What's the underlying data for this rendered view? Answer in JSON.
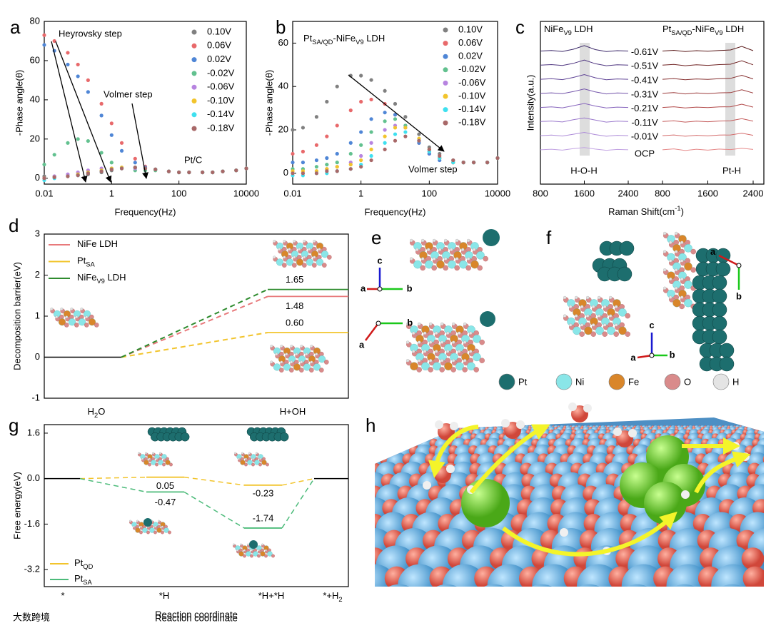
{
  "panel_labels": [
    "a",
    "b",
    "c",
    "d",
    "e",
    "f",
    "g",
    "h"
  ],
  "chart_data": [
    {
      "type": "scatter",
      "xscale": "log",
      "xlabel": "Frequency(Hz)",
      "ylabel": "-Phase angle(θ)",
      "x": [
        0.01,
        0.02,
        0.05,
        0.1,
        0.2,
        0.5,
        1,
        2,
        5,
        10,
        20,
        50,
        100,
        200,
        500,
        1000,
        2000,
        5000,
        10000
      ],
      "xlim": [
        0.01,
        10000
      ],
      "xticks": [
        0.01,
        1,
        100,
        10000
      ],
      "ylim": [
        -3,
        80
      ],
      "yticks": [
        0,
        20,
        40,
        60,
        80
      ],
      "series": [
        {
          "name": "0.10V",
          "color": "#808080",
          "values": [
            1,
            1,
            1,
            1.5,
            2,
            3,
            4,
            5,
            5.5,
            5,
            4.5,
            3.5,
            3,
            3,
            3,
            3,
            3.5,
            4,
            5
          ]
        },
        {
          "name": "0.06V",
          "color": "#e8696b",
          "values": [
            73,
            70,
            64,
            58,
            50,
            38,
            28,
            18,
            10,
            6,
            4.5,
            3.5,
            3,
            3,
            3,
            3,
            3.5,
            4,
            5
          ]
        },
        {
          "name": "0.02V",
          "color": "#4f86d6",
          "values": [
            68,
            65,
            58,
            52,
            44,
            32,
            22,
            14,
            8,
            5.5,
            4.5,
            3.5,
            3,
            3,
            3,
            3,
            3.5,
            4,
            5
          ]
        },
        {
          "name": "-0.02V",
          "color": "#62c18f",
          "values": [
            7,
            12,
            18,
            20,
            19,
            13,
            8,
            5,
            4,
            4,
            4,
            3.5,
            3,
            3,
            3,
            3,
            3.5,
            4,
            5
          ]
        },
        {
          "name": "-0.06V",
          "color": "#b784e0",
          "values": [
            0,
            1,
            2,
            3,
            4,
            5,
            5,
            5,
            5,
            5,
            4.5,
            3.5,
            3,
            3,
            3,
            3,
            3.5,
            4,
            5
          ]
        },
        {
          "name": "-0.10V",
          "color": "#f2c42c",
          "values": [
            0,
            0.5,
            1,
            2,
            3,
            4,
            5,
            5.5,
            5.5,
            5,
            4.5,
            3.5,
            3,
            3,
            3,
            3,
            3.5,
            4,
            5
          ]
        },
        {
          "name": "-0.14V",
          "color": "#3fe0ef",
          "values": [
            -1,
            0,
            1,
            1.5,
            2.5,
            3.5,
            4.5,
            5,
            5.5,
            5,
            4.5,
            3.5,
            3,
            3,
            3,
            3,
            3.5,
            4,
            5
          ]
        },
        {
          "name": "-0.18V",
          "color": "#a86868",
          "values": [
            0,
            0.5,
            1,
            1.5,
            2.5,
            3.5,
            4.5,
            5,
            5.5,
            5,
            4.5,
            3.5,
            3,
            3,
            3,
            3,
            3.5,
            4,
            5
          ]
        }
      ],
      "annotations": [
        {
          "text": "Heyrovsky step"
        },
        {
          "text": "Volmer step"
        },
        {
          "text": "Pt/C",
          "color": "#f2c42c"
        }
      ]
    },
    {
      "type": "scatter",
      "xscale": "log",
      "xlabel": "Frequency(Hz)",
      "ylabel": "-Phase angle(θ)",
      "x": [
        0.01,
        0.02,
        0.05,
        0.1,
        0.2,
        0.5,
        1,
        2,
        5,
        10,
        20,
        50,
        100,
        200,
        500,
        1000,
        2000,
        5000,
        10000
      ],
      "xlim": [
        0.01,
        10000
      ],
      "xticks": [
        0.01,
        1,
        100,
        10000
      ],
      "ylim": [
        -5,
        70
      ],
      "yticks": [
        0,
        20,
        40,
        60
      ],
      "series": [
        {
          "name": "0.10V",
          "color": "#808080",
          "values": [
            20,
            21,
            26,
            33,
            40,
            45,
            45,
            43,
            38,
            32,
            26,
            18,
            12,
            9,
            6,
            5,
            5,
            5,
            7
          ]
        },
        {
          "name": "0.06V",
          "color": "#e8696b",
          "values": [
            9,
            10,
            13,
            17,
            22,
            29,
            33,
            34,
            32,
            27,
            21,
            14,
            9,
            7,
            5,
            5,
            5,
            5,
            7
          ]
        },
        {
          "name": "0.02V",
          "color": "#4f86d6",
          "values": [
            5,
            5,
            6,
            7,
            9,
            14,
            19,
            25,
            28,
            27,
            22,
            14,
            9,
            6,
            5,
            5,
            5,
            5,
            7
          ]
        },
        {
          "name": "-0.02V",
          "color": "#62c18f",
          "values": [
            2,
            2,
            3,
            4,
            5,
            9,
            13,
            19,
            24,
            25,
            22,
            15,
            10,
            7,
            5,
            5,
            5,
            5,
            7
          ]
        },
        {
          "name": "-0.06V",
          "color": "#b784e0",
          "values": [
            0,
            0,
            1,
            2,
            3,
            5,
            8,
            14,
            20,
            22,
            21,
            15,
            10,
            7,
            5,
            5,
            5,
            5,
            7
          ]
        },
        {
          "name": "-0.10V",
          "color": "#f2c42c",
          "values": [
            1,
            1,
            1,
            2,
            3,
            4,
            6,
            11,
            17,
            21,
            21,
            16,
            11,
            7,
            5,
            5,
            5,
            5,
            7
          ]
        },
        {
          "name": "-0.14V",
          "color": "#3fe0ef",
          "values": [
            -1,
            -1,
            0,
            0,
            1,
            2,
            4,
            8,
            14,
            18,
            19,
            15,
            10,
            7,
            5,
            5,
            5,
            5,
            7
          ]
        },
        {
          "name": "-0.18V",
          "color": "#a86868",
          "values": [
            0,
            0,
            0,
            1,
            1,
            2,
            3,
            6,
            11,
            15,
            17,
            15,
            11,
            8,
            6,
            5,
            5,
            5,
            7
          ]
        }
      ],
      "annotations": [
        {
          "parts": [
            {
              "text": "Pt"
            },
            {
              "text": "SA/QD",
              "sub": true
            },
            {
              "text": "-NiFe"
            },
            {
              "text": "V9",
              "sub": true
            },
            {
              "text": " LDH"
            }
          ],
          "color": "#e8696b"
        },
        {
          "text": "Volmer step"
        }
      ]
    },
    {
      "type": "spectra",
      "ylabel": "Intensity(a.u.)",
      "xlabel": [
        {
          "text": "Raman Shift(cm"
        },
        {
          "text": "-1",
          "sup": true
        },
        {
          "text": ")"
        }
      ],
      "x": [
        800,
        1000,
        1200,
        1400,
        1600,
        1800,
        2000,
        2200,
        2400
      ],
      "xlim": [
        800,
        2400
      ],
      "xticks": [
        800,
        1600,
        2400
      ],
      "ylim": [
        0,
        9
      ],
      "labels": [
        "-0.61V",
        "-0.51V",
        "-0.41V",
        "-0.31V",
        "-0.21V",
        "-0.11V",
        "-0.01V",
        "OCP"
      ],
      "annotations": [
        "H-O-H",
        "Pt-H"
      ],
      "panels": [
        {
          "title": [
            {
              "text": "NiFe"
            },
            {
              "text": "V9",
              "sub": true
            },
            {
              "text": " LDH"
            }
          ],
          "color": "#b784e0",
          "colors": [
            "#3d2a6a",
            "#4f3680",
            "#604496",
            "#7354aa",
            "#8765bd",
            "#9a78cc",
            "#ad8bd8",
            "#c2a3e3"
          ],
          "traces": [
            [
              7.36,
              7.39,
              7.34,
              7.46,
              7.66,
              7.44,
              7.33,
              7.38,
              7.36
            ],
            [
              6.58,
              6.61,
              6.56,
              6.68,
              6.86,
              6.66,
              6.55,
              6.6,
              6.58
            ],
            [
              5.8,
              5.83,
              5.78,
              5.9,
              6.06,
              5.88,
              5.77,
              5.82,
              5.8
            ],
            [
              5.02,
              5.05,
              5,
              5.12,
              5.26,
              5.1,
              4.99,
              5.04,
              5.02
            ],
            [
              4.24,
              4.27,
              4.22,
              4.34,
              4.46,
              4.32,
              4.21,
              4.26,
              4.24
            ],
            [
              3.46,
              3.49,
              3.44,
              3.56,
              3.66,
              3.54,
              3.43,
              3.48,
              3.46
            ],
            [
              2.68,
              2.71,
              2.66,
              2.76,
              2.86,
              2.74,
              2.65,
              2.7,
              2.68
            ],
            [
              1.9,
              1.93,
              1.88,
              1.96,
              2.02,
              1.94,
              1.87,
              1.92,
              1.9
            ]
          ]
        },
        {
          "title": [
            {
              "text": "Pt"
            },
            {
              "text": "SA/QD",
              "sub": true
            },
            {
              "text": "-NiFe"
            },
            {
              "text": "V9",
              "sub": true
            },
            {
              "text": " LDH"
            }
          ],
          "color": "#e8696b",
          "colors": [
            "#5a1a1a",
            "#702424",
            "#863030",
            "#9c3c3c",
            "#b24a4a",
            "#c45a5a",
            "#d46c6c",
            "#e68a8a"
          ],
          "traces": [
            [
              7.36,
              7.4,
              7.33,
              7.38,
              7.35,
              7.39,
              7.42,
              7.62,
              7.38
            ],
            [
              6.58,
              6.62,
              6.55,
              6.6,
              6.57,
              6.61,
              6.63,
              6.82,
              6.6
            ],
            [
              5.8,
              5.84,
              5.77,
              5.82,
              5.79,
              5.83,
              5.85,
              6.02,
              5.82
            ],
            [
              5.02,
              5.06,
              4.99,
              5.04,
              5.01,
              5.05,
              5.06,
              5.22,
              5.04
            ],
            [
              4.24,
              4.28,
              4.21,
              4.26,
              4.23,
              4.27,
              4.28,
              4.42,
              4.26
            ],
            [
              3.46,
              3.5,
              3.43,
              3.48,
              3.45,
              3.49,
              3.5,
              3.62,
              3.48
            ],
            [
              2.68,
              2.72,
              2.65,
              2.7,
              2.67,
              2.71,
              2.72,
              2.82,
              2.7
            ],
            [
              1.9,
              1.95,
              1.86,
              1.93,
              1.88,
              1.94,
              1.91,
              1.98,
              1.92
            ]
          ]
        }
      ]
    },
    {
      "type": "energy_levels",
      "ylabel": "Decomposition barrier(eV)",
      "ylim": [
        -1,
        3
      ],
      "yticks": [
        -1,
        0,
        1,
        2,
        3
      ],
      "categories": [
        [
          {
            "text": "H"
          },
          {
            "text": "2",
            "sub": true
          },
          {
            "text": "O"
          }
        ],
        [
          {
            "text": "H+OH"
          }
        ]
      ],
      "series": [
        {
          "name": [
            {
              "text": "NiFe LDH"
            }
          ],
          "color": "#e8797b",
          "values": [
            0,
            1.48
          ],
          "value_labels": [
            null,
            "1.48"
          ]
        },
        {
          "name": [
            {
              "text": "Pt"
            },
            {
              "text": "SA",
              "sub": true
            }
          ],
          "color": "#f2c42c",
          "values": [
            0,
            0.6
          ],
          "value_labels": [
            null,
            "0.60"
          ]
        },
        {
          "name": [
            {
              "text": "NiFe"
            },
            {
              "text": "V9",
              "sub": true
            },
            {
              "text": " LDH"
            }
          ],
          "color": "#2e8b2e",
          "values": [
            0,
            1.65
          ],
          "value_labels": [
            null,
            "1.65"
          ]
        }
      ]
    },
    {
      "type": "energy_levels",
      "ylabel": "Free energy(eV)",
      "xlabel": "Reaction coordinate",
      "ylim": [
        -3.8,
        1.9
      ],
      "yticks": [
        {
          "value": -3.2,
          "label": "-3.2"
        },
        {
          "value": -1.6,
          "label": "-1.6"
        },
        {
          "value": 0,
          "label": "0.0"
        },
        {
          "value": 1.6,
          "label": "1.6"
        }
      ],
      "categories": [
        [
          {
            "text": "*"
          }
        ],
        [
          {
            "text": "*H"
          }
        ],
        [
          {
            "text": "*H+*H"
          }
        ],
        [
          {
            "text": "*+H"
          },
          {
            "text": "2",
            "sub": true
          }
        ]
      ],
      "series": [
        {
          "name": [
            {
              "text": "Pt"
            },
            {
              "text": "QD",
              "sub": true
            }
          ],
          "color": "#f2c42c",
          "values": [
            0,
            0.05,
            -0.23,
            0
          ],
          "value_labels": [
            null,
            "0.05",
            "-0.23",
            null
          ]
        },
        {
          "name": [
            {
              "text": "Pt"
            },
            {
              "text": "SA",
              "sub": true
            }
          ],
          "color": "#4cbb7a",
          "values": [
            0,
            -0.47,
            -1.74,
            0
          ],
          "value_labels": [
            null,
            "-0.47",
            "-1.74",
            null
          ]
        }
      ]
    }
  ],
  "structure_axes": {
    "e": [
      "c",
      "a",
      "b",
      "b",
      "a"
    ],
    "f": [
      "a",
      "b",
      "c",
      "a",
      "b"
    ]
  },
  "atom_legend": [
    {
      "label": "Pt",
      "color": "#1d6e6e"
    },
    {
      "label": "Ni",
      "color": "#8ae6e8"
    },
    {
      "label": "Fe",
      "color": "#d9862a"
    },
    {
      "label": "O",
      "color": "#d98b8b"
    },
    {
      "label": "H",
      "color": "#e4e4e4"
    }
  ],
  "watermark": "大数跨境"
}
